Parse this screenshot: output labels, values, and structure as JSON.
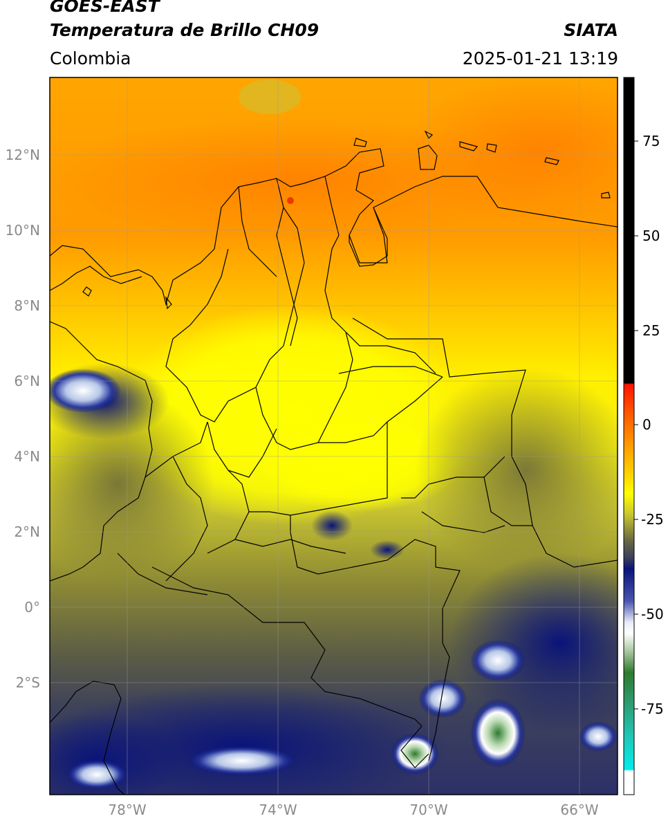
{
  "header": {
    "satellite": "GOES-EAST",
    "product": "Temperatura de Brillo CH09",
    "region": "Colombia",
    "organization": "SIATA",
    "datetime": "2025-01-21 13:19"
  },
  "map": {
    "lat_labels": [
      "12°N",
      "10°N",
      "8°N",
      "6°N",
      "4°N",
      "2°N",
      "0°",
      "2°S"
    ],
    "lon_labels": [
      "78°W",
      "74°W",
      "70°W",
      "66°W"
    ],
    "extent": {
      "lon": [
        -80,
        -65
      ],
      "lat": [
        -5.2,
        14
      ]
    }
  },
  "colorbar": {
    "labels": [
      "75",
      "50",
      "25",
      "0",
      "-25",
      "-50",
      "-75"
    ],
    "range": [
      -95,
      90
    ],
    "colors": {
      "warm": "#000000",
      "hot": "#e01b00",
      "orange": "#ff8c00",
      "yellow": "#ffff00",
      "olive": "#8a8a2e",
      "slate": "#3a3f5c",
      "navy": "#0a147a",
      "white": "#ffffff",
      "green": "#2e7a2e",
      "cyan": "#00e5e5"
    }
  }
}
